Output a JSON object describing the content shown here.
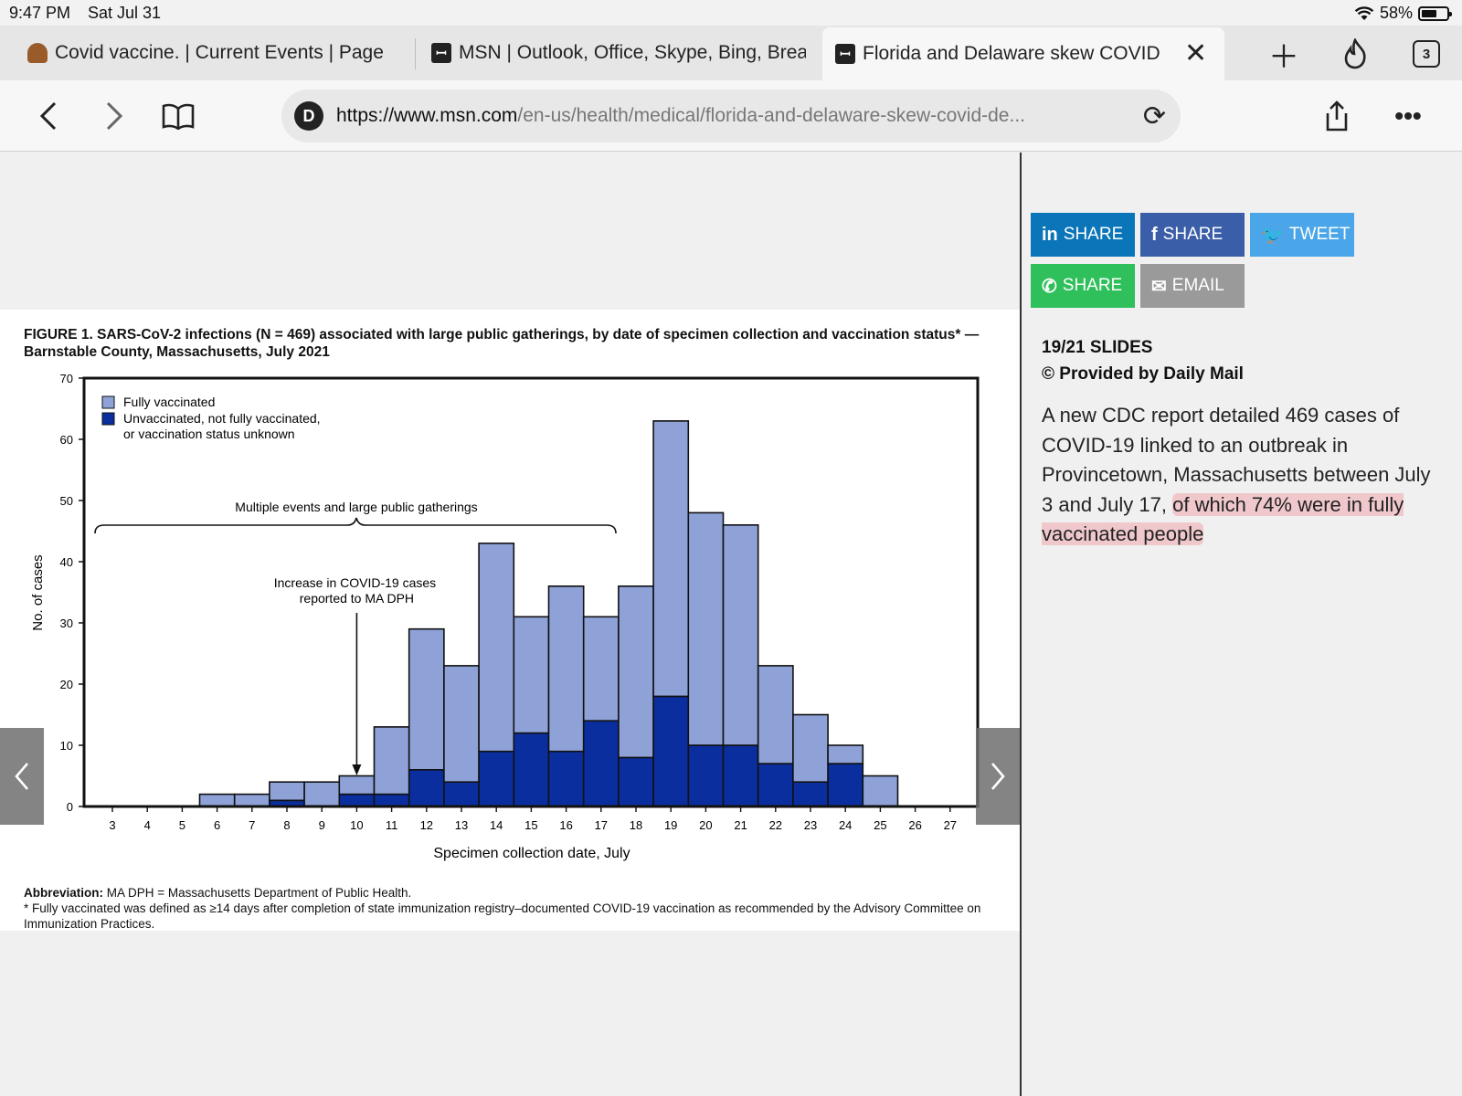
{
  "status_bar": {
    "time": "9:47 PM",
    "date": "Sat Jul 31",
    "battery": "58%"
  },
  "tabs": [
    {
      "label": "Covid vaccine. | Current Events | Page"
    },
    {
      "label": "MSN | Outlook, Office, Skype, Bing, Breaking News"
    },
    {
      "label": "Florida and Delaware skew COVID"
    }
  ],
  "tab_actions": {
    "tab_count": "3"
  },
  "address_bar": {
    "favicon": "D",
    "host": "https://www.msn.com",
    "path": "/en-us/health/medical/florida-and-delaware-skew-covid-de..."
  },
  "figure": {
    "title": "FIGURE 1. SARS-CoV-2 infections (N = 469) associated with large public gatherings, by date of specimen collection and vaccination status* — Barnstable County, Massachusetts, July 2021",
    "footnote_abbr_label": "Abbreviation:",
    "footnote_abbr": "MA DPH = Massachusetts Department of Public Health.",
    "footnote_star": "* Fully vaccinated was defined as ≥14 days after completion of state immunization registry–documented COVID-19 vaccination as recommended by the Advisory Committee on Immunization Practices."
  },
  "chart_data": {
    "type": "bar",
    "stacked": true,
    "xlabel": "Specimen collection date, July",
    "ylabel": "No. of cases",
    "ylim": [
      0,
      70
    ],
    "yticks": [
      0,
      10,
      20,
      30,
      40,
      50,
      60,
      70
    ],
    "categories": [
      "3",
      "4",
      "5",
      "6",
      "7",
      "8",
      "9",
      "10",
      "11",
      "12",
      "13",
      "14",
      "15",
      "16",
      "17",
      "18",
      "19",
      "20",
      "21",
      "22",
      "23",
      "24",
      "25",
      "26",
      "27"
    ],
    "series": [
      {
        "name": "Unvaccinated, not fully vaccinated, or vaccination status unknown",
        "color": "#0b2e9e",
        "values": [
          0,
          0,
          0,
          0,
          0,
          1,
          0,
          2,
          2,
          6,
          4,
          9,
          12,
          9,
          14,
          8,
          18,
          10,
          10,
          7,
          4,
          7,
          0,
          0,
          0
        ]
      },
      {
        "name": "Fully vaccinated",
        "color": "#8ea2d8",
        "values": [
          0,
          0,
          0,
          2,
          2,
          3,
          4,
          3,
          11,
          23,
          19,
          34,
          19,
          27,
          17,
          28,
          45,
          38,
          36,
          16,
          11,
          3,
          5,
          0,
          0
        ]
      }
    ],
    "legend_position": "top-left",
    "annotations": [
      {
        "text": "Multiple events and large public gatherings"
      },
      {
        "text": "Increase in COVID-19 cases reported to MA DPH",
        "x": "10"
      }
    ]
  },
  "share_buttons": [
    {
      "label": "SHARE",
      "icon": "linkedin-icon",
      "glyph": "in",
      "color": "#0a75b8"
    },
    {
      "label": "SHARE",
      "icon": "facebook-icon",
      "glyph": "f",
      "color": "#3a5ea8"
    },
    {
      "label": "TWEET",
      "icon": "twitter-icon",
      "glyph": "🐦",
      "color": "#4aa6e8"
    },
    {
      "label": "SHARE",
      "icon": "whatsapp-icon",
      "glyph": "✆",
      "color": "#2fbf5b"
    },
    {
      "label": "EMAIL",
      "icon": "email-icon",
      "glyph": "✉",
      "color": "#9a9a9a"
    }
  ],
  "slide_info": {
    "count": "19/21 SLIDES",
    "provider": "© Provided by Daily Mail",
    "caption_plain": "A new CDC report detailed 469 cases of COVID-19 linked to an outbreak in Provincetown, Massachusetts between July 3 and July 17, ",
    "caption_highlight": "of which 74% were in fully vaccinated people"
  }
}
